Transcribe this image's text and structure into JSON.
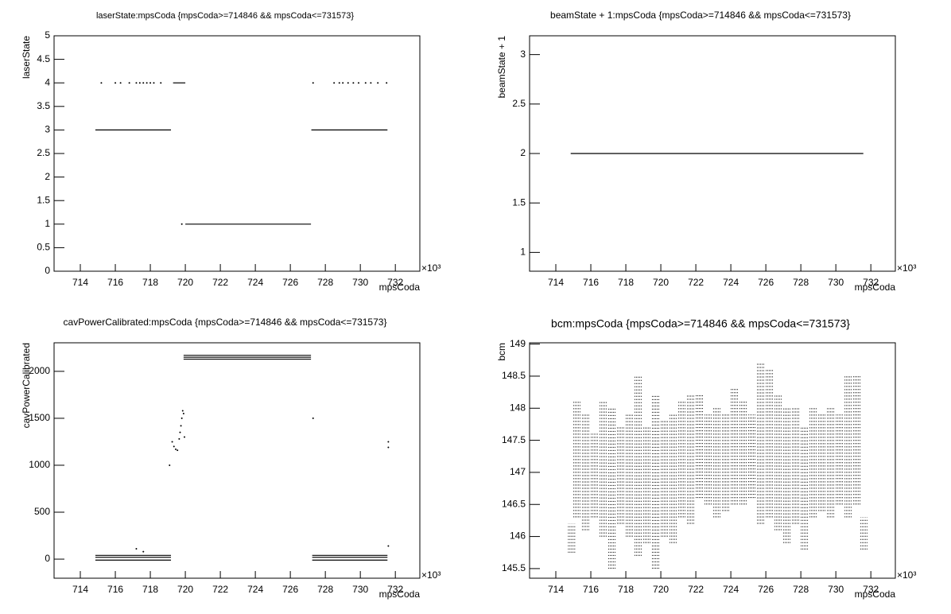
{
  "chart_data": [
    {
      "type": "scatter",
      "title": "laserState:mpsCoda {mpsCoda>=714846 && mpsCoda<=731573}",
      "x_label": "mpsCoda",
      "y_label": "laserState",
      "x_multiplier": "×10³",
      "xlim": [
        712.5,
        733.4
      ],
      "xticks": [
        714,
        716,
        718,
        720,
        722,
        724,
        726,
        728,
        730,
        732
      ],
      "ylim": [
        0,
        5
      ],
      "yticks": [
        0,
        0.5,
        1,
        1.5,
        2,
        2.5,
        3,
        3.5,
        4,
        4.5,
        5
      ],
      "color": "#000000",
      "series": [
        {
          "style": "line",
          "x": [
            714.86,
            719.18
          ],
          "y": [
            3,
            3
          ]
        },
        {
          "style": "line",
          "x": [
            719.3,
            720.0
          ],
          "y": [
            4,
            4
          ]
        },
        {
          "style": "line",
          "x": [
            720.0,
            727.18
          ],
          "y": [
            1,
            1
          ]
        },
        {
          "style": "line",
          "x": [
            727.2,
            731.55
          ],
          "y": [
            3,
            3
          ]
        },
        {
          "style": "dots",
          "x": [
            715.2,
            716.0,
            716.3,
            716.8,
            717.2,
            717.4,
            717.6,
            717.8,
            718.0,
            718.2,
            718.6,
            719.8,
            727.3,
            728.5,
            728.8,
            729.0,
            729.3,
            729.6,
            729.9,
            730.3,
            730.6,
            731.0,
            731.5
          ],
          "y": [
            4,
            4,
            4,
            4,
            4,
            4,
            4,
            4,
            4,
            4,
            4,
            1,
            4,
            4,
            4,
            4,
            4,
            4,
            4,
            4,
            4,
            4,
            4
          ]
        }
      ]
    },
    {
      "type": "scatter",
      "title": "beamState + 1:mpsCoda {mpsCoda>=714846 && mpsCoda<=731573}",
      "x_label": "mpsCoda",
      "y_label": "beamState + 1",
      "x_multiplier": "×10³",
      "xlim": [
        712.5,
        733.4
      ],
      "xticks": [
        714,
        716,
        718,
        720,
        722,
        724,
        726,
        728,
        730,
        732
      ],
      "ylim": [
        0.81,
        3.19
      ],
      "yticks": [
        1,
        1.5,
        2,
        2.5,
        3
      ],
      "color": "#000000",
      "series": [
        {
          "style": "line",
          "x": [
            714.85,
            731.57
          ],
          "y": [
            2,
            2
          ]
        }
      ]
    },
    {
      "type": "scatter",
      "title": "cavPowerCalibrated:mpsCoda {mpsCoda>=714846 && mpsCoda<=731573}",
      "x_label": "mpsCoda",
      "y_label": "cavPowerCalibrated",
      "x_multiplier": "×10³",
      "xlim": [
        712.5,
        733.4
      ],
      "xticks": [
        714,
        716,
        718,
        720,
        722,
        724,
        726,
        728,
        730,
        732
      ],
      "ylim": [
        -203,
        2304
      ],
      "yticks": [
        0,
        500,
        1000,
        1500,
        2000
      ],
      "color": "#000000",
      "series": [
        {
          "style": "line",
          "x": [
            714.86,
            719.18
          ],
          "y": [
            40,
            40
          ]
        },
        {
          "style": "line",
          "x": [
            714.86,
            719.18
          ],
          "y": [
            20,
            20
          ]
        },
        {
          "style": "line",
          "x": [
            714.86,
            719.18
          ],
          "y": [
            -10,
            -10
          ]
        },
        {
          "style": "line",
          "x": [
            719.9,
            727.18
          ],
          "y": [
            2170,
            2170
          ]
        },
        {
          "style": "line",
          "x": [
            719.9,
            727.18
          ],
          "y": [
            2150,
            2150
          ]
        },
        {
          "style": "line",
          "x": [
            719.9,
            727.18
          ],
          "y": [
            2130,
            2130
          ]
        },
        {
          "style": "line",
          "x": [
            727.25,
            731.55
          ],
          "y": [
            40,
            40
          ]
        },
        {
          "style": "line",
          "x": [
            727.25,
            731.55
          ],
          "y": [
            20,
            20
          ]
        },
        {
          "style": "line",
          "x": [
            727.25,
            731.55
          ],
          "y": [
            -10,
            -10
          ]
        },
        {
          "style": "dots",
          "x": [
            719.1,
            719.25,
            719.35,
            719.45,
            719.55,
            719.65,
            719.7,
            719.75,
            719.8,
            719.85,
            719.9,
            719.95,
            727.3,
            731.6,
            731.6,
            731.6,
            717.2,
            717.6
          ],
          "y": [
            1000,
            1250,
            1200,
            1170,
            1160,
            1280,
            1350,
            1420,
            1500,
            1580,
            1550,
            1300,
            1500,
            1250,
            1190,
            140,
            110,
            80
          ]
        }
      ]
    },
    {
      "type": "scatter",
      "title": "bcm:mpsCoda {mpsCoda>=714846 && mpsCoda<=731573}",
      "x_label": "mpsCoda",
      "y_label": "bcm",
      "x_multiplier": "×10³",
      "xlim": [
        712.5,
        733.4
      ],
      "xticks": [
        714,
        716,
        718,
        720,
        722,
        724,
        726,
        728,
        730,
        732
      ],
      "ylim": [
        145.35,
        149.02
      ],
      "yticks": [
        145.5,
        146,
        146.5,
        147,
        147.5,
        148,
        148.5,
        149
      ],
      "color": "#000000",
      "series": [
        {
          "style": "ranges",
          "x": [
            714.9,
            715.2,
            715.7,
            716.2,
            716.7,
            717.2,
            717.7,
            718.2,
            718.7,
            719.2,
            719.7,
            720.2,
            720.7,
            721.2,
            721.7,
            722.2,
            722.7,
            723.2,
            723.7,
            724.2,
            724.7,
            725.2,
            725.7,
            726.2,
            726.7,
            727.2,
            727.7,
            728.2,
            728.7,
            729.2,
            729.7,
            730.2,
            730.7,
            731.2,
            731.6
          ],
          "ymin": [
            145.75,
            146.3,
            146.1,
            146.3,
            146.0,
            145.5,
            146.2,
            146.0,
            145.7,
            145.9,
            145.5,
            146.0,
            145.9,
            146.3,
            146.2,
            146.6,
            146.5,
            146.3,
            146.4,
            146.5,
            146.5,
            146.6,
            146.2,
            146.3,
            146.1,
            145.9,
            146.2,
            145.8,
            146.3,
            146.4,
            146.3,
            146.5,
            146.3,
            146.5,
            145.8
          ],
          "ymax": [
            146.2,
            148.1,
            147.9,
            147.6,
            148.1,
            148.0,
            147.7,
            147.9,
            148.5,
            147.7,
            148.2,
            147.8,
            147.9,
            148.1,
            148.2,
            148.2,
            147.9,
            148.0,
            147.9,
            148.3,
            148.1,
            147.9,
            148.7,
            148.6,
            148.2,
            148.0,
            148.0,
            147.7,
            148.0,
            147.9,
            148.0,
            147.9,
            148.5,
            148.5,
            146.3
          ]
        }
      ]
    }
  ]
}
